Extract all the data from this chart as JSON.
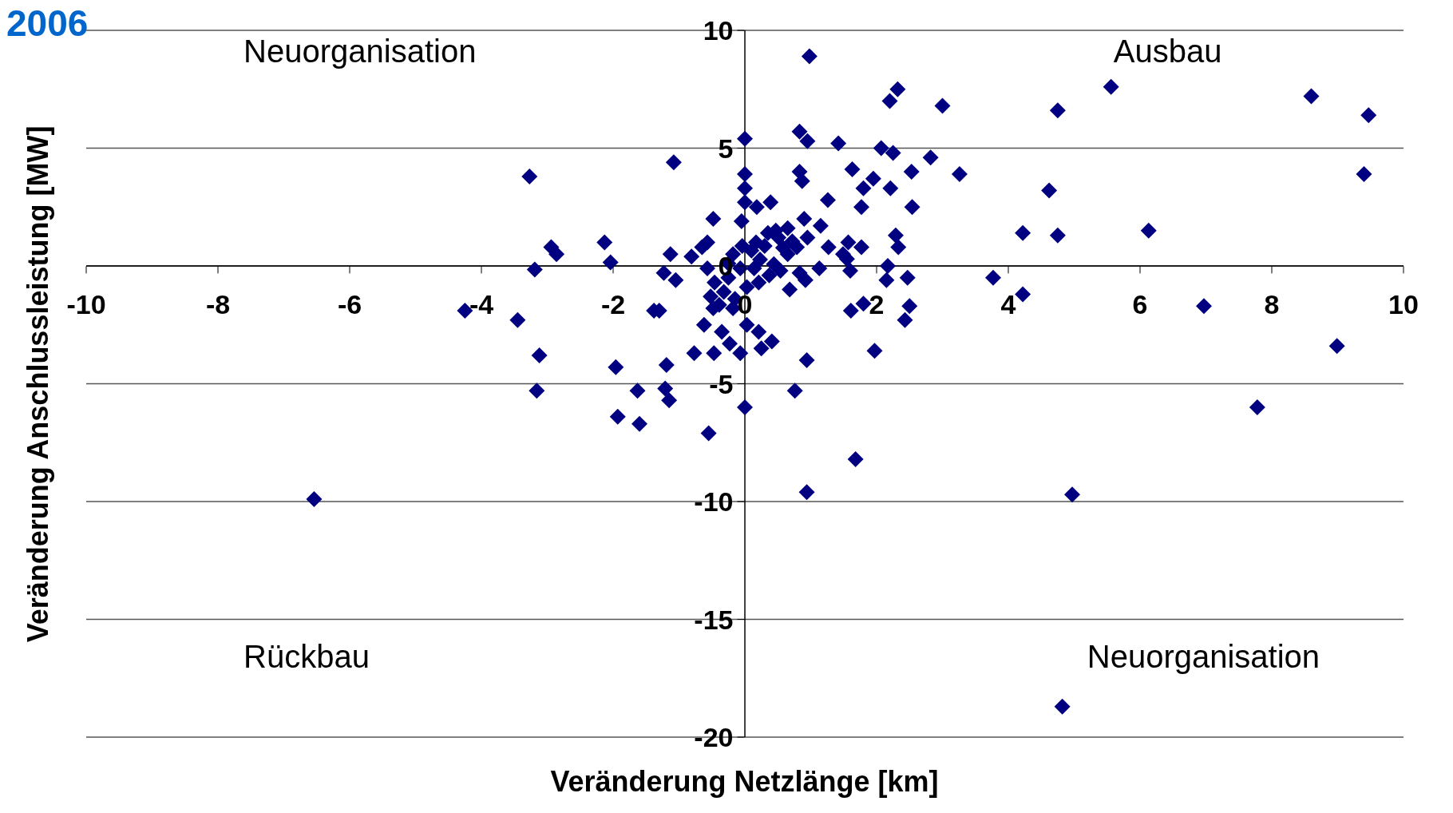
{
  "chart_data": {
    "type": "scatter",
    "title": "2006",
    "xlabel": "Veränderung Netzlänge [km]",
    "ylabel": "Veränderung Anschlussleistung [MW]",
    "annotations": [
      "Neuorganisation",
      "Ausbau",
      "Rückbau",
      "Neuorganisation"
    ],
    "xlim": [
      -10,
      10
    ],
    "xticks": [
      -10,
      -8,
      -6,
      -4,
      -2,
      0,
      2,
      4,
      6,
      8,
      10
    ],
    "ylim": [
      -20,
      10
    ],
    "yticks": [
      -20,
      -15,
      -10,
      -5,
      0,
      5,
      10
    ],
    "grid": "y",
    "marker": "diamond",
    "series": [
      {
        "color": "#000080",
        "x": [
          0.98,
          2.32,
          2.2,
          3.0,
          4.75,
          5.56,
          8.6,
          9.47,
          9.4,
          6.13,
          4.22,
          4.75,
          4.62,
          3.77,
          4.22,
          6.97,
          8.99,
          7.78,
          4.97,
          4.82,
          1.68,
          0.94,
          0.76,
          0,
          -0.55,
          -1.08,
          -3.27,
          -6.54,
          -4.25,
          -3.45,
          -3.12,
          -3.16,
          -3.19,
          -2.94,
          -2.86,
          -2.13,
          -2.04,
          -1.96,
          -1.93,
          -1.6,
          -1.63,
          -1.38,
          -1.3,
          -1.19,
          -1.21,
          -1.15,
          -1.13,
          -1.23,
          -1.05,
          -0.77,
          -0.62,
          -0.48,
          -0.47,
          -0.81,
          -0.57,
          -0.65,
          0,
          0,
          0,
          0,
          0.18,
          0.39,
          -0.05,
          0.83,
          0.87,
          0.83,
          0.95,
          1.42,
          2.07,
          2.25,
          2.82,
          1.63,
          1.95,
          1.8,
          2.21,
          2.53,
          3.26,
          1.77,
          1.26,
          2.54,
          0.9,
          1.15,
          0.95,
          1.57,
          1.77,
          1.27,
          2.29,
          2.33,
          1.49,
          1.55,
          1.6,
          2.17,
          2.15,
          2.47,
          1.8,
          1.61,
          2.5,
          2.43,
          1.97,
          0.94,
          1.13,
          0.83,
          0.92,
          0.68,
          0.41,
          0.25,
          0.21,
          -0.07,
          -0.23,
          -0.35,
          -0.48,
          0.03,
          -0.18,
          0.1,
          0.23,
          0.44,
          0.58,
          0.72,
          0.51,
          0.35,
          0.17,
          -0.07,
          -0.25,
          -0.46,
          -0.32,
          -0.15,
          0.03,
          0.21,
          0.37,
          0.54,
          -0.52,
          -0.57,
          -0.39,
          -0.18,
          0.3,
          0.65,
          0.79,
          0.65,
          0.47,
          -0.25,
          -0.04,
          0.14
        ],
        "values": [
          8.9,
          7.5,
          7.0,
          6.8,
          6.6,
          7.6,
          7.2,
          6.4,
          3.9,
          1.5,
          1.4,
          1.3,
          3.2,
          -0.5,
          -1.2,
          -1.7,
          -3.4,
          -6.0,
          -9.7,
          -18.7,
          -8.2,
          -9.6,
          -5.3,
          -6.0,
          -7.1,
          4.4,
          3.8,
          -9.9,
          -1.9,
          -2.3,
          -3.8,
          -5.3,
          -0.15,
          0.8,
          0.5,
          1.0,
          0.15,
          -4.3,
          -6.4,
          -6.7,
          -5.3,
          -1.9,
          -1.9,
          -4.2,
          -5.2,
          -5.7,
          0.5,
          -0.3,
          -0.6,
          -3.7,
          -2.5,
          2.0,
          -3.7,
          0.4,
          1.0,
          0.8,
          5.4,
          3.9,
          3.3,
          2.7,
          2.5,
          2.7,
          1.9,
          4.0,
          3.6,
          5.7,
          5.3,
          5.2,
          5.0,
          4.8,
          4.6,
          4.1,
          3.7,
          3.3,
          3.3,
          4.0,
          3.9,
          2.5,
          2.8,
          2.5,
          2.0,
          1.7,
          1.2,
          1.0,
          0.8,
          0.8,
          1.3,
          0.8,
          0.5,
          0.3,
          -0.2,
          0.0,
          -0.6,
          -0.5,
          -1.6,
          -1.9,
          -1.7,
          -2.3,
          -3.6,
          -4.0,
          -0.1,
          -0.3,
          -0.6,
          -1.0,
          -3.2,
          -3.5,
          -2.8,
          -3.7,
          -3.3,
          -2.8,
          -1.8,
          -2.5,
          0.5,
          0.65,
          0.27,
          0.08,
          0.77,
          1.04,
          1.2,
          1.4,
          1.0,
          -0.1,
          -0.5,
          -0.7,
          -1.1,
          -1.4,
          -0.9,
          -0.7,
          -0.4,
          -0.2,
          -1.3,
          -0.1,
          -1.65,
          -1.8,
          0.85,
          0.5,
          0.8,
          1.6,
          1.5,
          0.1,
          0.85,
          -0.1
        ]
      }
    ]
  }
}
